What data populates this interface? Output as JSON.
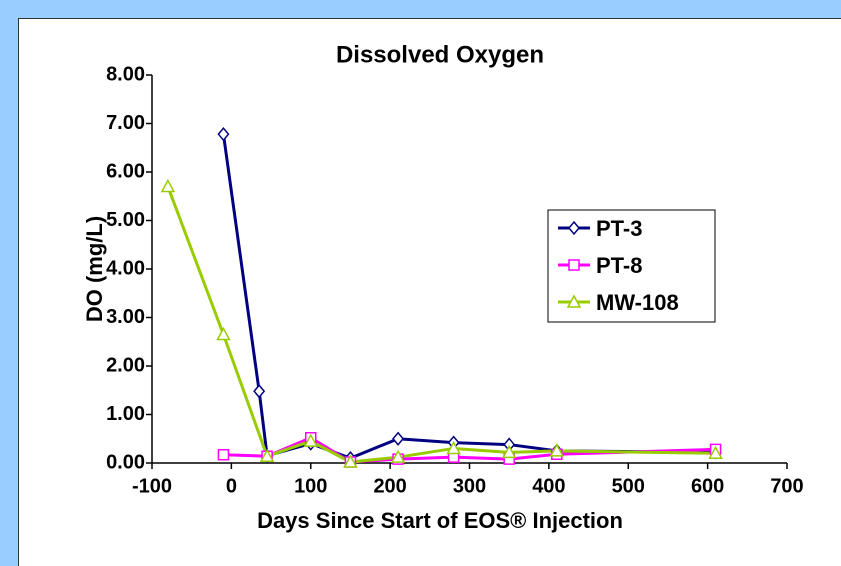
{
  "chart_data": {
    "type": "line",
    "title": "Dissolved Oxygen",
    "xlabel": "Days Since Start of EOS® Injection",
    "ylabel": "DO (mg/L)",
    "xlim": [
      -100,
      700
    ],
    "xticks": [
      -100,
      0,
      100,
      200,
      300,
      400,
      500,
      600,
      700
    ],
    "ylim": [
      0,
      8
    ],
    "yticks": [
      {
        "value": 0,
        "label": "0.00"
      },
      {
        "value": 1,
        "label": "1.00"
      },
      {
        "value": 2,
        "label": "2.00"
      },
      {
        "value": 3,
        "label": "3.00"
      },
      {
        "value": 4,
        "label": "4.00"
      },
      {
        "value": 5,
        "label": "5.00"
      },
      {
        "value": 6,
        "label": "6.00"
      },
      {
        "value": 7,
        "label": "7.00"
      },
      {
        "value": 8,
        "label": "8.00"
      }
    ],
    "grid": false,
    "legend": "right",
    "series": [
      {
        "name": "PT-3",
        "color": "#000080",
        "marker": "diamond",
        "x": [
          -10,
          35,
          45,
          100,
          150,
          210,
          280,
          350,
          410,
          610
        ],
        "values": [
          6.78,
          1.48,
          0.15,
          0.4,
          0.1,
          0.5,
          0.42,
          0.38,
          0.25,
          0.22
        ]
      },
      {
        "name": "PT-8",
        "color": "#ff00ff",
        "marker": "square",
        "x": [
          -10,
          45,
          100,
          150,
          210,
          280,
          350,
          410,
          610
        ],
        "values": [
          0.17,
          0.14,
          0.52,
          0.02,
          0.08,
          0.12,
          0.08,
          0.18,
          0.28
        ]
      },
      {
        "name": "MW-108",
        "color": "#99cc00",
        "marker": "triangle",
        "x": [
          -80,
          -10,
          45,
          100,
          150,
          210,
          280,
          350,
          410,
          610
        ],
        "values": [
          5.7,
          2.65,
          0.14,
          0.45,
          0.02,
          0.12,
          0.3,
          0.22,
          0.25,
          0.2
        ]
      }
    ]
  }
}
